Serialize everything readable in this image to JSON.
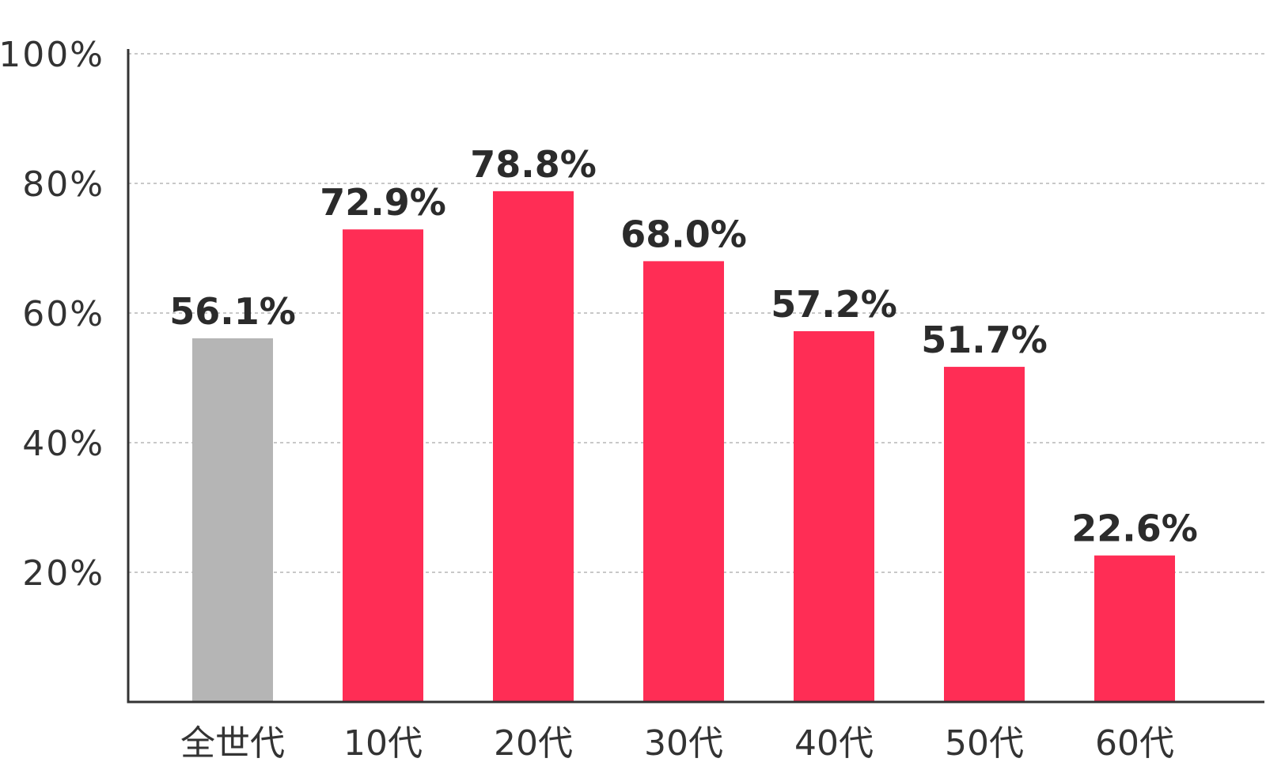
{
  "chart_data": {
    "type": "bar",
    "categories": [
      "全世代",
      "10代",
      "20代",
      "30代",
      "40代",
      "50代",
      "60代"
    ],
    "values": [
      56.1,
      72.9,
      78.8,
      68.0,
      57.2,
      51.7,
      22.6
    ],
    "data_labels": [
      "56.1%",
      "72.9%",
      "78.8%",
      "68.0%",
      "57.2%",
      "51.7%",
      "22.6%"
    ],
    "y_ticks": [
      20,
      40,
      60,
      80,
      100
    ],
    "y_tick_labels": [
      "20%",
      "40%",
      "60%",
      "80%",
      "100%"
    ],
    "ylim": [
      0,
      100
    ],
    "grid": true,
    "colors": {
      "highlight": "#b5b5b5",
      "bar": "#ff2d55"
    },
    "bar_colors": [
      "#b5b5b5",
      "#ff2d55",
      "#ff2d55",
      "#ff2d55",
      "#ff2d55",
      "#ff2d55",
      "#ff2d55"
    ]
  }
}
